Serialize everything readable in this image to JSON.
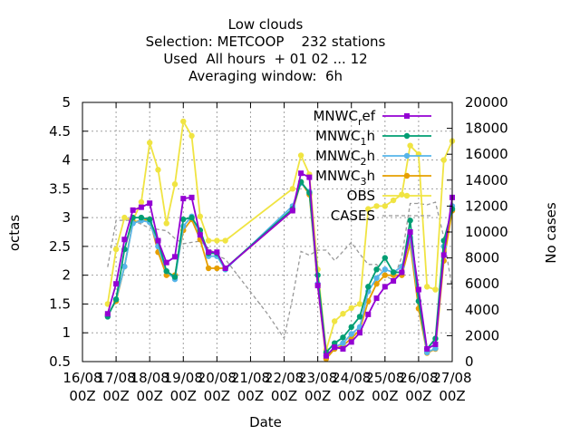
{
  "chart_data": {
    "type": "line",
    "title_lines": [
      "Low clouds",
      "Selection: METCOOP    232 stations",
      "Used  All hours  + 01 02 ... 12",
      "Averaging window:  6h"
    ],
    "xlabel": "Date",
    "ylabel": "octas",
    "y2label": "No cases",
    "ylim": [
      0.5,
      5
    ],
    "y2lim": [
      0,
      20000
    ],
    "yticks": [
      "0.5",
      "1",
      "1.5",
      "2",
      "2.5",
      "3",
      "3.5",
      "4",
      "4.5",
      "5"
    ],
    "y2ticks": [
      "0",
      "2000",
      "4000",
      "6000",
      "8000",
      "10000",
      "12000",
      "14000",
      "16000",
      "18000",
      "20000"
    ],
    "xticks": [
      {
        "day": 0,
        "line1": "16/08",
        "line2": "00Z"
      },
      {
        "day": 1,
        "line1": "17/08",
        "line2": "00Z"
      },
      {
        "day": 2,
        "line1": "18/08",
        "line2": "00Z"
      },
      {
        "day": 3,
        "line1": "19/08",
        "line2": "00Z"
      },
      {
        "day": 4,
        "line1": "20/08",
        "line2": "00Z"
      },
      {
        "day": 5,
        "line1": "21/08",
        "line2": "00Z"
      },
      {
        "day": 6,
        "line1": "22/08",
        "line2": "00Z"
      },
      {
        "day": 7,
        "line1": "23/08",
        "line2": "00Z"
      },
      {
        "day": 8,
        "line1": "24/08",
        "line2": "00Z"
      },
      {
        "day": 9,
        "line1": "25/08",
        "line2": "00Z"
      },
      {
        "day": 10,
        "line1": "26/08",
        "line2": "00Z"
      },
      {
        "day": 11,
        "line1": "27/08",
        "line2": "00Z"
      }
    ],
    "xlim": [
      0,
      11
    ],
    "grid": true,
    "legend_position": "top-right",
    "series": [
      {
        "name": "MNWC_ref",
        "legend_base": "MNWC",
        "legend_sub": "r",
        "legend_tail": "ef",
        "color": "#9400d3",
        "marker": "square",
        "axis": "y1",
        "x": [
          0.75,
          1.0,
          1.25,
          1.5,
          1.75,
          2.0,
          2.25,
          2.5,
          2.75,
          3.0,
          3.25,
          3.5,
          3.75,
          4.0,
          4.25,
          6.25,
          6.5,
          6.75,
          7.0,
          7.25,
          7.5,
          7.75,
          8.0,
          8.25,
          8.5,
          8.75,
          9.0,
          9.25,
          9.5,
          9.75,
          10.0,
          10.25,
          10.5,
          10.75,
          11.0
        ],
        "y": [
          1.33,
          1.85,
          2.62,
          3.13,
          3.18,
          3.25,
          2.6,
          2.22,
          2.32,
          3.33,
          3.35,
          2.7,
          2.4,
          2.4,
          2.12,
          3.12,
          3.77,
          3.7,
          1.82,
          0.6,
          0.75,
          0.72,
          0.84,
          1.0,
          1.32,
          1.6,
          1.8,
          1.9,
          2.05,
          2.75,
          1.75,
          0.72,
          0.8,
          2.35,
          3.35
        ]
      },
      {
        "name": "MNWC_1h",
        "legend_base": "MNWC",
        "legend_sub": "1",
        "legend_tail": "h",
        "color": "#009e73",
        "marker": "circle",
        "axis": "y1",
        "x": [
          0.75,
          1.0,
          1.25,
          1.5,
          1.75,
          2.0,
          2.25,
          2.5,
          2.75,
          3.0,
          3.25,
          3.5,
          3.75,
          4.0,
          4.25,
          6.25,
          6.5,
          6.75,
          7.0,
          7.25,
          7.5,
          7.75,
          8.0,
          8.25,
          8.5,
          8.75,
          9.0,
          9.25,
          9.5,
          9.75,
          10.0,
          10.25,
          10.5,
          10.75,
          11.0
        ],
        "y": [
          1.28,
          1.58,
          2.45,
          3.0,
          3.0,
          2.97,
          2.6,
          2.07,
          1.97,
          2.97,
          3.0,
          2.78,
          2.38,
          2.38,
          2.12,
          3.15,
          3.62,
          3.43,
          2.0,
          0.66,
          0.82,
          0.92,
          1.1,
          1.28,
          1.8,
          2.1,
          2.3,
          2.05,
          2.05,
          2.95,
          1.55,
          0.72,
          0.9,
          2.6,
          3.15
        ]
      },
      {
        "name": "MNWC_2h",
        "legend_base": "MNWC",
        "legend_sub": "2",
        "legend_tail": "h",
        "color": "#56b4e9",
        "marker": "circle",
        "axis": "y1",
        "x": [
          0.75,
          1.0,
          1.25,
          1.5,
          1.75,
          2.0,
          2.25,
          2.5,
          2.75,
          3.0,
          3.25,
          3.5,
          3.75,
          4.0,
          4.25,
          6.25,
          6.5,
          6.75,
          7.0,
          7.25,
          7.5,
          7.75,
          8.0,
          8.25,
          8.5,
          8.75,
          9.0,
          9.25,
          9.5,
          9.75,
          10.0,
          10.25,
          10.5,
          10.75,
          11.0
        ],
        "y": [
          1.3,
          1.58,
          2.15,
          2.9,
          2.95,
          2.92,
          2.5,
          2.07,
          1.93,
          2.85,
          3.02,
          2.72,
          2.33,
          2.33,
          2.1,
          3.2,
          3.6,
          3.45,
          1.85,
          0.6,
          0.75,
          0.82,
          0.98,
          1.1,
          1.72,
          1.95,
          2.1,
          2.05,
          2.15,
          2.65,
          1.55,
          0.66,
          0.73,
          2.5,
          3.2
        ]
      },
      {
        "name": "MNWC_3h",
        "legend_base": "MNWC",
        "legend_sub": "3",
        "legend_tail": "h",
        "color": "#e69f00",
        "marker": "circle",
        "axis": "y1",
        "x": [
          0.75,
          1.0,
          1.25,
          1.5,
          1.75,
          2.0,
          2.25,
          2.5,
          2.75,
          3.0,
          3.25,
          3.5,
          3.75,
          4.0,
          4.25,
          6.25,
          6.5,
          6.75,
          7.0,
          7.25,
          7.5,
          7.75,
          8.0,
          8.25,
          8.5,
          8.75,
          9.0,
          9.25,
          9.5,
          9.75,
          10.0,
          10.25,
          10.5,
          10.75,
          11.0
        ],
        "y": [
          1.32,
          1.55,
          2.15,
          2.92,
          2.95,
          2.97,
          2.4,
          2.0,
          2.0,
          2.78,
          2.97,
          2.62,
          2.12,
          2.12,
          2.12,
          3.12,
          3.62,
          3.4,
          1.82,
          0.55,
          0.72,
          0.78,
          0.9,
          1.05,
          1.55,
          1.85,
          2.0,
          2.0,
          2.0,
          2.55,
          1.42,
          0.65,
          0.72,
          2.25,
          3.12
        ]
      },
      {
        "name": "OBS",
        "legend_base": "OBS",
        "legend_sub": "",
        "legend_tail": "",
        "color": "#f0e442",
        "marker": "circle",
        "axis": "y1",
        "x": [
          0.75,
          1.0,
          1.25,
          1.5,
          1.75,
          2.0,
          2.25,
          2.5,
          2.75,
          3.0,
          3.25,
          3.5,
          3.75,
          4.0,
          4.25,
          6.25,
          6.5,
          6.75,
          7.0,
          7.25,
          7.5,
          7.75,
          8.0,
          8.25,
          8.5,
          8.75,
          9.0,
          9.25,
          9.5,
          9.75,
          10.0,
          10.25,
          10.5,
          10.75,
          11.0
        ],
        "y": [
          1.5,
          2.45,
          3.0,
          2.95,
          3.27,
          4.3,
          3.83,
          2.9,
          3.58,
          4.67,
          4.42,
          3.02,
          2.6,
          2.6,
          2.6,
          3.5,
          4.08,
          3.75,
          2.1,
          0.7,
          1.2,
          1.33,
          1.43,
          1.5,
          3.15,
          3.2,
          3.2,
          3.3,
          3.4,
          4.25,
          4.1,
          1.8,
          1.75,
          4.0,
          4.33
        ]
      },
      {
        "name": "CASES",
        "legend_base": "CASES",
        "legend_sub": "",
        "legend_tail": "",
        "color": "#999999",
        "marker": "none",
        "dashed": true,
        "axis": "y2",
        "x": [
          0.75,
          1.0,
          1.25,
          1.5,
          2.0,
          2.5,
          2.75,
          3.0,
          3.5,
          4.0,
          4.25,
          5.5,
          6.0,
          6.25,
          6.5,
          6.75,
          7.0,
          7.25,
          7.5,
          8.0,
          8.25,
          8.5,
          8.75,
          9.0,
          9.25,
          9.5,
          9.75,
          10.0,
          10.25,
          10.5,
          10.75,
          11.0
        ],
        "y": [
          7300,
          10900,
          10900,
          10900,
          10300,
          10100,
          9500,
          9100,
          9300,
          8200,
          7900,
          3700,
          1800,
          4900,
          8500,
          8200,
          8600,
          8600,
          7800,
          9200,
          8300,
          7500,
          7500,
          6600,
          6300,
          8100,
          12200,
          12200,
          12100,
          12300,
          9600,
          5600
        ]
      }
    ]
  }
}
